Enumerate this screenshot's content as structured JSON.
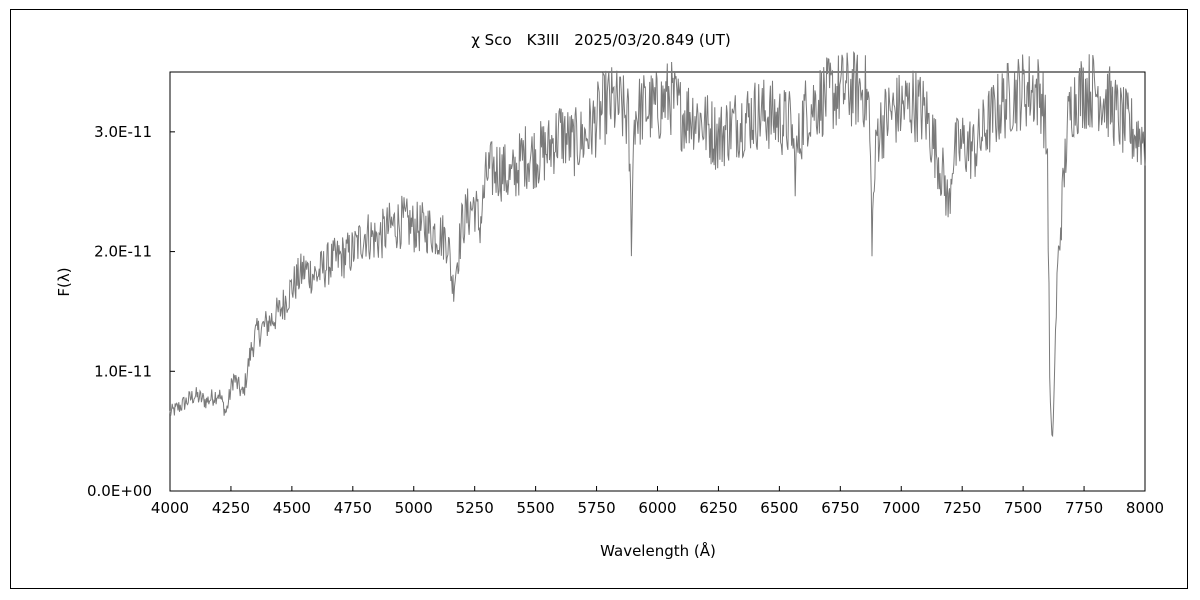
{
  "chart_data": {
    "type": "line",
    "title": "χ Sco　K3III　2025/03/20.849 (UT)",
    "xlabel": "Wavelength (Å)",
    "ylabel": "F(λ)",
    "xlim": [
      4000,
      8000
    ],
    "ylim": [
      0,
      3.5e-11
    ],
    "x_ticks": [
      4000,
      4250,
      4500,
      4750,
      5000,
      5250,
      5500,
      5750,
      6000,
      6250,
      6500,
      6750,
      7000,
      7250,
      7500,
      7750,
      8000
    ],
    "x_tick_labels": [
      "4000",
      "4250",
      "4500",
      "4750",
      "5000",
      "5250",
      "5500",
      "5750",
      "6000",
      "6250",
      "6500",
      "6750",
      "7000",
      "7250",
      "7500",
      "7750",
      "8000"
    ],
    "y_ticks": [
      0,
      1e-11,
      2e-11,
      3e-11
    ],
    "y_tick_labels": [
      "0.0E+00",
      "1.0E-11",
      "2.0E-11",
      "3.0E-11"
    ],
    "grid": false,
    "legend": "none",
    "line_color": "#7a7a7a",
    "series": [
      {
        "x": [
          4000,
          4050,
          4100,
          4150,
          4200,
          4230,
          4260,
          4300,
          4330,
          4350,
          4400,
          4450,
          4500,
          4550,
          4600,
          4650,
          4700,
          4750,
          4800,
          4850,
          4900,
          4950,
          5000,
          5050,
          5100,
          5140,
          5160,
          5180,
          5200,
          5250,
          5270,
          5300,
          5350,
          5400,
          5450,
          5500,
          5550,
          5600,
          5650,
          5700,
          5750,
          5800,
          5850,
          5880,
          5893,
          5905,
          5950,
          6000,
          6050,
          6100,
          6150,
          6200,
          6250,
          6300,
          6350,
          6400,
          6450,
          6500,
          6550,
          6563,
          6600,
          6650,
          6700,
          6750,
          6800,
          6850,
          6868,
          6880,
          6900,
          6950,
          7000,
          7050,
          7100,
          7150,
          7180,
          7195,
          7210,
          7250,
          7300,
          7350,
          7400,
          7450,
          7500,
          7550,
          7580,
          7600,
          7610,
          7620,
          7640,
          7660,
          7680,
          7700,
          7750,
          7800,
          7850,
          7900,
          7950,
          8000
        ],
        "values": [
          6.5e-12,
          7.2e-12,
          8e-12,
          7.5e-12,
          8.2e-12,
          6.5e-12,
          9.5e-12,
          8e-12,
          1.15e-11,
          1.3e-11,
          1.4e-11,
          1.5e-11,
          1.7e-11,
          1.85e-11,
          1.8e-11,
          1.9e-11,
          1.95e-11,
          2e-11,
          2.15e-11,
          2.1e-11,
          2.2e-11,
          2.25e-11,
          2.2e-11,
          2.2e-11,
          2.15e-11,
          2.1e-11,
          1.7e-11,
          1.95e-11,
          2.25e-11,
          2.4e-11,
          2.2e-11,
          2.65e-11,
          2.7e-11,
          2.6e-11,
          2.8e-11,
          2.8e-11,
          2.85e-11,
          3e-11,
          2.9e-11,
          2.95e-11,
          3.1e-11,
          3.25e-11,
          3.2e-11,
          3.1e-11,
          2.15e-11,
          3.15e-11,
          3.2e-11,
          3.2e-11,
          3.3e-11,
          3.15e-11,
          3.15e-11,
          3.05e-11,
          2.95e-11,
          3.05e-11,
          3.1e-11,
          3.15e-11,
          3.15e-11,
          3.1e-11,
          3.05e-11,
          2.7e-11,
          3.15e-11,
          3.25e-11,
          3.3e-11,
          3.35e-11,
          3.35e-11,
          3.35e-11,
          3.2e-11,
          2.15e-11,
          3e-11,
          3.15e-11,
          3.2e-11,
          3.25e-11,
          3.15e-11,
          2.8e-11,
          2.55e-11,
          2.35e-11,
          2.8e-11,
          2.9e-11,
          2.85e-11,
          3.05e-11,
          3.2e-11,
          3.3e-11,
          3.35e-11,
          3.35e-11,
          3.3e-11,
          2.8e-11,
          8e-12,
          3.5e-12,
          1.8e-11,
          2.4e-11,
          3e-11,
          3.25e-11,
          3.35e-11,
          3.35e-11,
          3.25e-11,
          3.1e-11,
          3e-11,
          2.95e-11
        ]
      }
    ]
  }
}
